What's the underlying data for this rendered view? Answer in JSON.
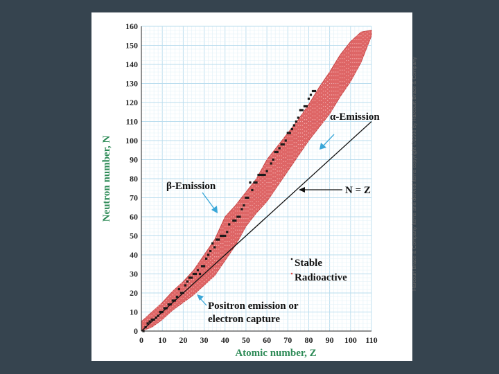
{
  "chart_data": {
    "type": "scatter",
    "title": "",
    "xlabel": "Atomic number, Z",
    "ylabel": "Neutron number, N",
    "xlim": [
      0,
      110
    ],
    "ylim": [
      0,
      160
    ],
    "xticks": [
      0,
      10,
      20,
      30,
      40,
      50,
      60,
      70,
      80,
      90,
      100,
      110
    ],
    "yticks": [
      0,
      10,
      20,
      30,
      40,
      50,
      60,
      70,
      80,
      90,
      100,
      110,
      120,
      130,
      140,
      150,
      160
    ],
    "grid": true,
    "series": [
      {
        "name": "Radioactive",
        "color": "#d94b4b",
        "band_lower": [
          [
            0,
            0
          ],
          [
            5,
            2
          ],
          [
            10,
            6
          ],
          [
            15,
            11
          ],
          [
            20,
            15
          ],
          [
            25,
            19
          ],
          [
            30,
            24
          ],
          [
            35,
            29
          ],
          [
            40,
            37
          ],
          [
            45,
            45
          ],
          [
            50,
            55
          ],
          [
            55,
            62
          ],
          [
            60,
            68
          ],
          [
            65,
            76
          ],
          [
            70,
            84
          ],
          [
            75,
            92
          ],
          [
            80,
            100
          ],
          [
            85,
            107
          ],
          [
            90,
            114
          ],
          [
            95,
            123
          ],
          [
            100,
            131
          ],
          [
            105,
            141
          ],
          [
            110,
            155
          ]
        ],
        "band_upper": [
          [
            0,
            5
          ],
          [
            5,
            10
          ],
          [
            10,
            15
          ],
          [
            15,
            21
          ],
          [
            20,
            26
          ],
          [
            25,
            32
          ],
          [
            30,
            40
          ],
          [
            35,
            48
          ],
          [
            40,
            60
          ],
          [
            45,
            66
          ],
          [
            50,
            73
          ],
          [
            55,
            80
          ],
          [
            60,
            90
          ],
          [
            65,
            97
          ],
          [
            70,
            104
          ],
          [
            75,
            111
          ],
          [
            80,
            119
          ],
          [
            85,
            128
          ],
          [
            90,
            136
          ],
          [
            95,
            145
          ],
          [
            100,
            152
          ],
          [
            105,
            157
          ],
          [
            110,
            158
          ]
        ]
      },
      {
        "name": "Stable",
        "color": "#1a1a1a",
        "points": [
          [
            1,
            0
          ],
          [
            2,
            2
          ],
          [
            3,
            4
          ],
          [
            4,
            5
          ],
          [
            5,
            6
          ],
          [
            6,
            6
          ],
          [
            7,
            7
          ],
          [
            8,
            8
          ],
          [
            9,
            10
          ],
          [
            10,
            10
          ],
          [
            11,
            12
          ],
          [
            12,
            12
          ],
          [
            13,
            14
          ],
          [
            14,
            14
          ],
          [
            15,
            16
          ],
          [
            16,
            16
          ],
          [
            17,
            18
          ],
          [
            18,
            22
          ],
          [
            19,
            20
          ],
          [
            20,
            20
          ],
          [
            21,
            24
          ],
          [
            22,
            26
          ],
          [
            23,
            28
          ],
          [
            24,
            28
          ],
          [
            25,
            30
          ],
          [
            26,
            30
          ],
          [
            27,
            32
          ],
          [
            28,
            30
          ],
          [
            29,
            34
          ],
          [
            30,
            34
          ],
          [
            31,
            38
          ],
          [
            32,
            40
          ],
          [
            33,
            42
          ],
          [
            34,
            46
          ],
          [
            35,
            44
          ],
          [
            36,
            48
          ],
          [
            37,
            48
          ],
          [
            38,
            50
          ],
          [
            39,
            50
          ],
          [
            40,
            50
          ],
          [
            41,
            52
          ],
          [
            42,
            56
          ],
          [
            44,
            58
          ],
          [
            45,
            58
          ],
          [
            46,
            60
          ],
          [
            47,
            60
          ],
          [
            48,
            64
          ],
          [
            49,
            66
          ],
          [
            50,
            70
          ],
          [
            51,
            70
          ],
          [
            52,
            78
          ],
          [
            53,
            74
          ],
          [
            54,
            78
          ],
          [
            55,
            78
          ],
          [
            56,
            82
          ],
          [
            57,
            82
          ],
          [
            58,
            82
          ],
          [
            59,
            82
          ],
          [
            60,
            84
          ],
          [
            62,
            88
          ],
          [
            63,
            90
          ],
          [
            64,
            94
          ],
          [
            65,
            94
          ],
          [
            66,
            96
          ],
          [
            67,
            98
          ],
          [
            68,
            98
          ],
          [
            69,
            100
          ],
          [
            70,
            104
          ],
          [
            71,
            104
          ],
          [
            72,
            106
          ],
          [
            73,
            108
          ],
          [
            74,
            110
          ],
          [
            75,
            112
          ],
          [
            76,
            116
          ],
          [
            77,
            116
          ],
          [
            78,
            118
          ],
          [
            79,
            118
          ],
          [
            80,
            122
          ],
          [
            81,
            124
          ],
          [
            82,
            126
          ],
          [
            83,
            126
          ]
        ]
      }
    ],
    "line": {
      "label": "N = Z",
      "from": [
        0,
        0
      ],
      "to": [
        110,
        110
      ]
    },
    "annotations": [
      {
        "label": "α-Emission",
        "at": [
          84,
          116
        ],
        "arrow_to": [
          78,
          96
        ]
      },
      {
        "label": "β-Emission",
        "at": [
          28,
          76
        ],
        "arrow_to": [
          40,
          62
        ]
      },
      {
        "label": "Positron emission or electron capture",
        "at": [
          27,
          12
        ],
        "arrow_to": [
          30,
          20
        ]
      },
      {
        "label": "N = Z",
        "at": [
          91,
          76
        ],
        "arrow_to": [
          72,
          76
        ]
      }
    ],
    "legend": {
      "position": "bottom-right",
      "items": [
        "Stable",
        "Radioactive"
      ]
    },
    "labels": {
      "alpha": "α-Emission",
      "beta": "β-Emission",
      "positron_line1": "Positron emission or",
      "positron_line2": "electron capture",
      "nz": "N = Z",
      "stable": "Stable",
      "radioactive": "Radioactive"
    }
  },
  "credit": "Harcourt Brace & Company items and derived items copyright ©1998 by Harcourt Brace & Company"
}
